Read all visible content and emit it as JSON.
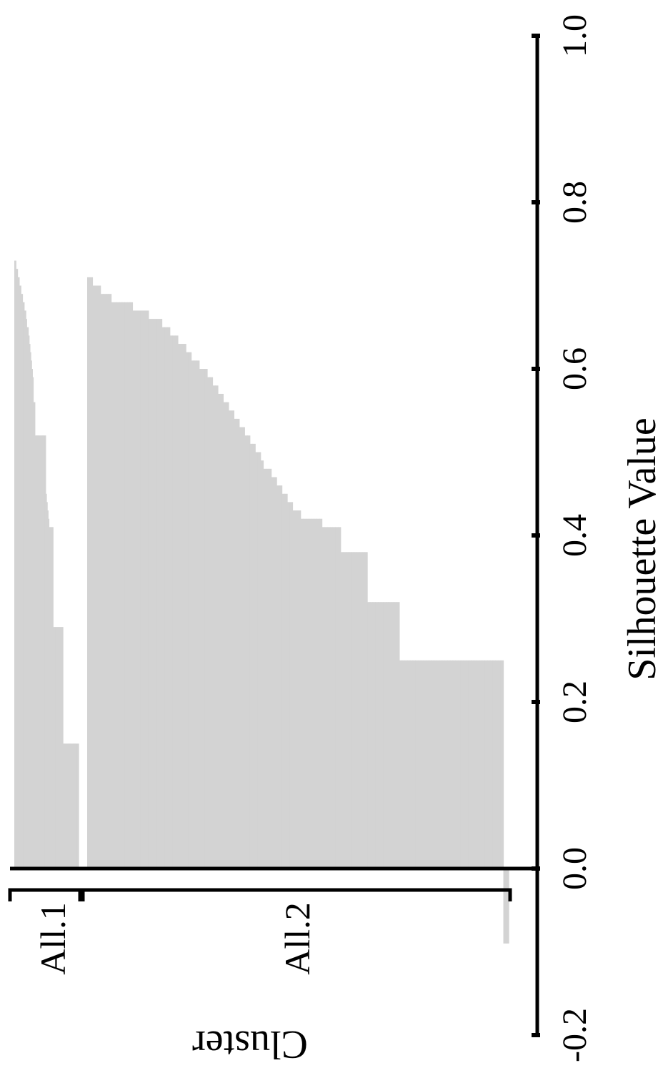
{
  "chart_data": {
    "type": "bar",
    "orientation": "rotated",
    "xlabel": "Silhouette Value",
    "ylabel": "Cluster",
    "xlim": [
      -0.2,
      1.0
    ],
    "ticks": [
      {
        "value": -0.2,
        "label": "-0.2"
      },
      {
        "value": 0.0,
        "label": "0.0"
      },
      {
        "value": 0.2,
        "label": "0.2"
      },
      {
        "value": 0.4,
        "label": "0.4"
      },
      {
        "value": 0.6,
        "label": "0.6"
      },
      {
        "value": 0.8,
        "label": "0.8"
      },
      {
        "value": 1.0,
        "label": "1.0"
      }
    ],
    "bar_color": "#d3d3d3",
    "clusters": [
      {
        "name": "All.1",
        "values": [
          0.73,
          0.73,
          0.72,
          0.72,
          0.71,
          0.71,
          0.7,
          0.7,
          0.69,
          0.69,
          0.68,
          0.68,
          0.67,
          0.67,
          0.66,
          0.65,
          0.65,
          0.64,
          0.63,
          0.62,
          0.61,
          0.6,
          0.59,
          0.56,
          0.56,
          0.52,
          0.52,
          0.52,
          0.52,
          0.52,
          0.52,
          0.52,
          0.52,
          0.52,
          0.52,
          0.52,
          0.52,
          0.52,
          0.45,
          0.44,
          0.43,
          0.42,
          0.41,
          0.41,
          0.41,
          0.41,
          0.41,
          0.29,
          0.29,
          0.29,
          0.29,
          0.29,
          0.29,
          0.29,
          0.29,
          0.29,
          0.29,
          0.29,
          0.29,
          0.15,
          0.15,
          0.15,
          0.15,
          0.15,
          0.15,
          0.15,
          0.15,
          0.15,
          0.15,
          0.15,
          0.15,
          0.15,
          0.15,
          0.15,
          0.15,
          0.15,
          0.15,
          0.15
        ]
      },
      {
        "name": "All.2",
        "values": [
          0.71,
          0.71,
          0.7,
          0.7,
          0.7,
          0.69,
          0.69,
          0.69,
          0.69,
          0.68,
          0.68,
          0.68,
          0.68,
          0.68,
          0.68,
          0.68,
          0.68,
          0.67,
          0.67,
          0.67,
          0.67,
          0.67,
          0.67,
          0.66,
          0.66,
          0.66,
          0.66,
          0.66,
          0.65,
          0.65,
          0.65,
          0.64,
          0.64,
          0.64,
          0.63,
          0.63,
          0.63,
          0.62,
          0.62,
          0.61,
          0.61,
          0.61,
          0.6,
          0.6,
          0.6,
          0.59,
          0.59,
          0.58,
          0.58,
          0.57,
          0.57,
          0.56,
          0.56,
          0.55,
          0.55,
          0.54,
          0.54,
          0.53,
          0.53,
          0.52,
          0.52,
          0.51,
          0.51,
          0.5,
          0.5,
          0.49,
          0.48,
          0.48,
          0.48,
          0.47,
          0.47,
          0.46,
          0.46,
          0.45,
          0.45,
          0.44,
          0.44,
          0.43,
          0.43,
          0.43,
          0.42,
          0.42,
          0.42,
          0.42,
          0.42,
          0.42,
          0.42,
          0.42,
          0.41,
          0.41,
          0.41,
          0.41,
          0.41,
          0.41,
          0.41,
          0.38,
          0.38,
          0.38,
          0.38,
          0.38,
          0.38,
          0.38,
          0.38,
          0.38,
          0.38,
          0.32,
          0.32,
          0.32,
          0.32,
          0.32,
          0.32,
          0.32,
          0.32,
          0.32,
          0.32,
          0.32,
          0.32,
          0.25,
          0.25,
          0.25,
          0.25,
          0.25,
          0.25,
          0.25,
          0.25,
          0.25,
          0.25,
          0.25,
          0.25,
          0.25,
          0.25,
          0.25,
          0.25,
          0.25,
          0.25,
          0.25,
          0.25,
          0.25,
          0.25,
          0.25,
          0.25,
          0.25,
          0.25,
          0.25,
          0.25,
          0.25,
          0.25,
          0.25,
          0.25,
          0.25,
          0.25,
          0.25,
          0.25,
          0.25,
          0.25,
          0.25,
          -0.09,
          -0.09
        ]
      }
    ]
  }
}
